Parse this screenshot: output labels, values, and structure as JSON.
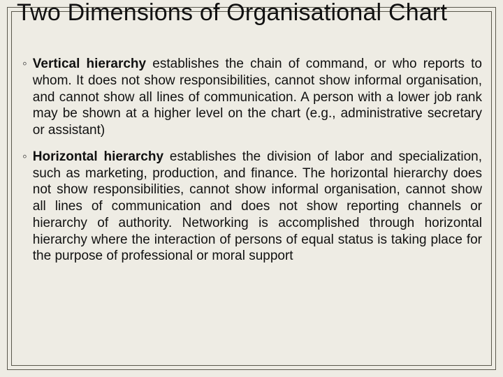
{
  "slide": {
    "title": "Two Dimensions of Organisational Chart",
    "background_color": "#eeece4",
    "frame_color": "#5a574c",
    "title_fontsize": 34,
    "body_fontsize": 19,
    "bullets": [
      {
        "lead": "Vertical hierarchy",
        "rest": " establishes the chain of command, or who reports to whom. It does not show responsibilities, cannot show informal organisation, and cannot show all lines of communication. A person with a lower job rank may be shown at a higher level on the chart (e.g., administrative secretary or assistant)"
      },
      {
        "lead": "Horizontal hierarchy",
        "rest": " establishes the division of labor and specialization, such as marketing, production, and finance. The horizontal hierarchy does not show responsibilities, cannot show informal organisation, cannot show all lines of communication and does not show reporting channels or hierarchy of authority. Networking is accomplished through horizontal hierarchy where the interaction of persons of equal status is taking place for the purpose of professional or moral support"
      }
    ],
    "bullet_glyph": "◦"
  }
}
